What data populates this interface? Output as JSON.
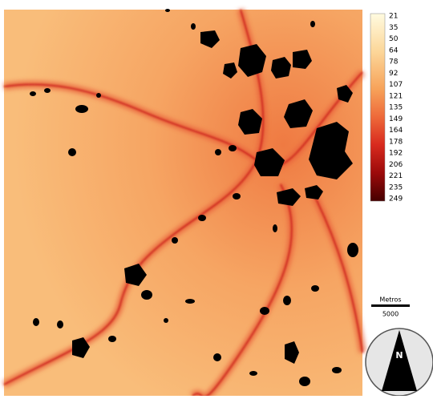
{
  "legend": {
    "labels": [
      21,
      35,
      50,
      64,
      78,
      92,
      107,
      121,
      135,
      149,
      164,
      178,
      192,
      206,
      221,
      235,
      249
    ]
  },
  "scale_bar": {
    "title": "Metros",
    "distance": 5000
  },
  "north_arrow": {
    "label": "N"
  }
}
